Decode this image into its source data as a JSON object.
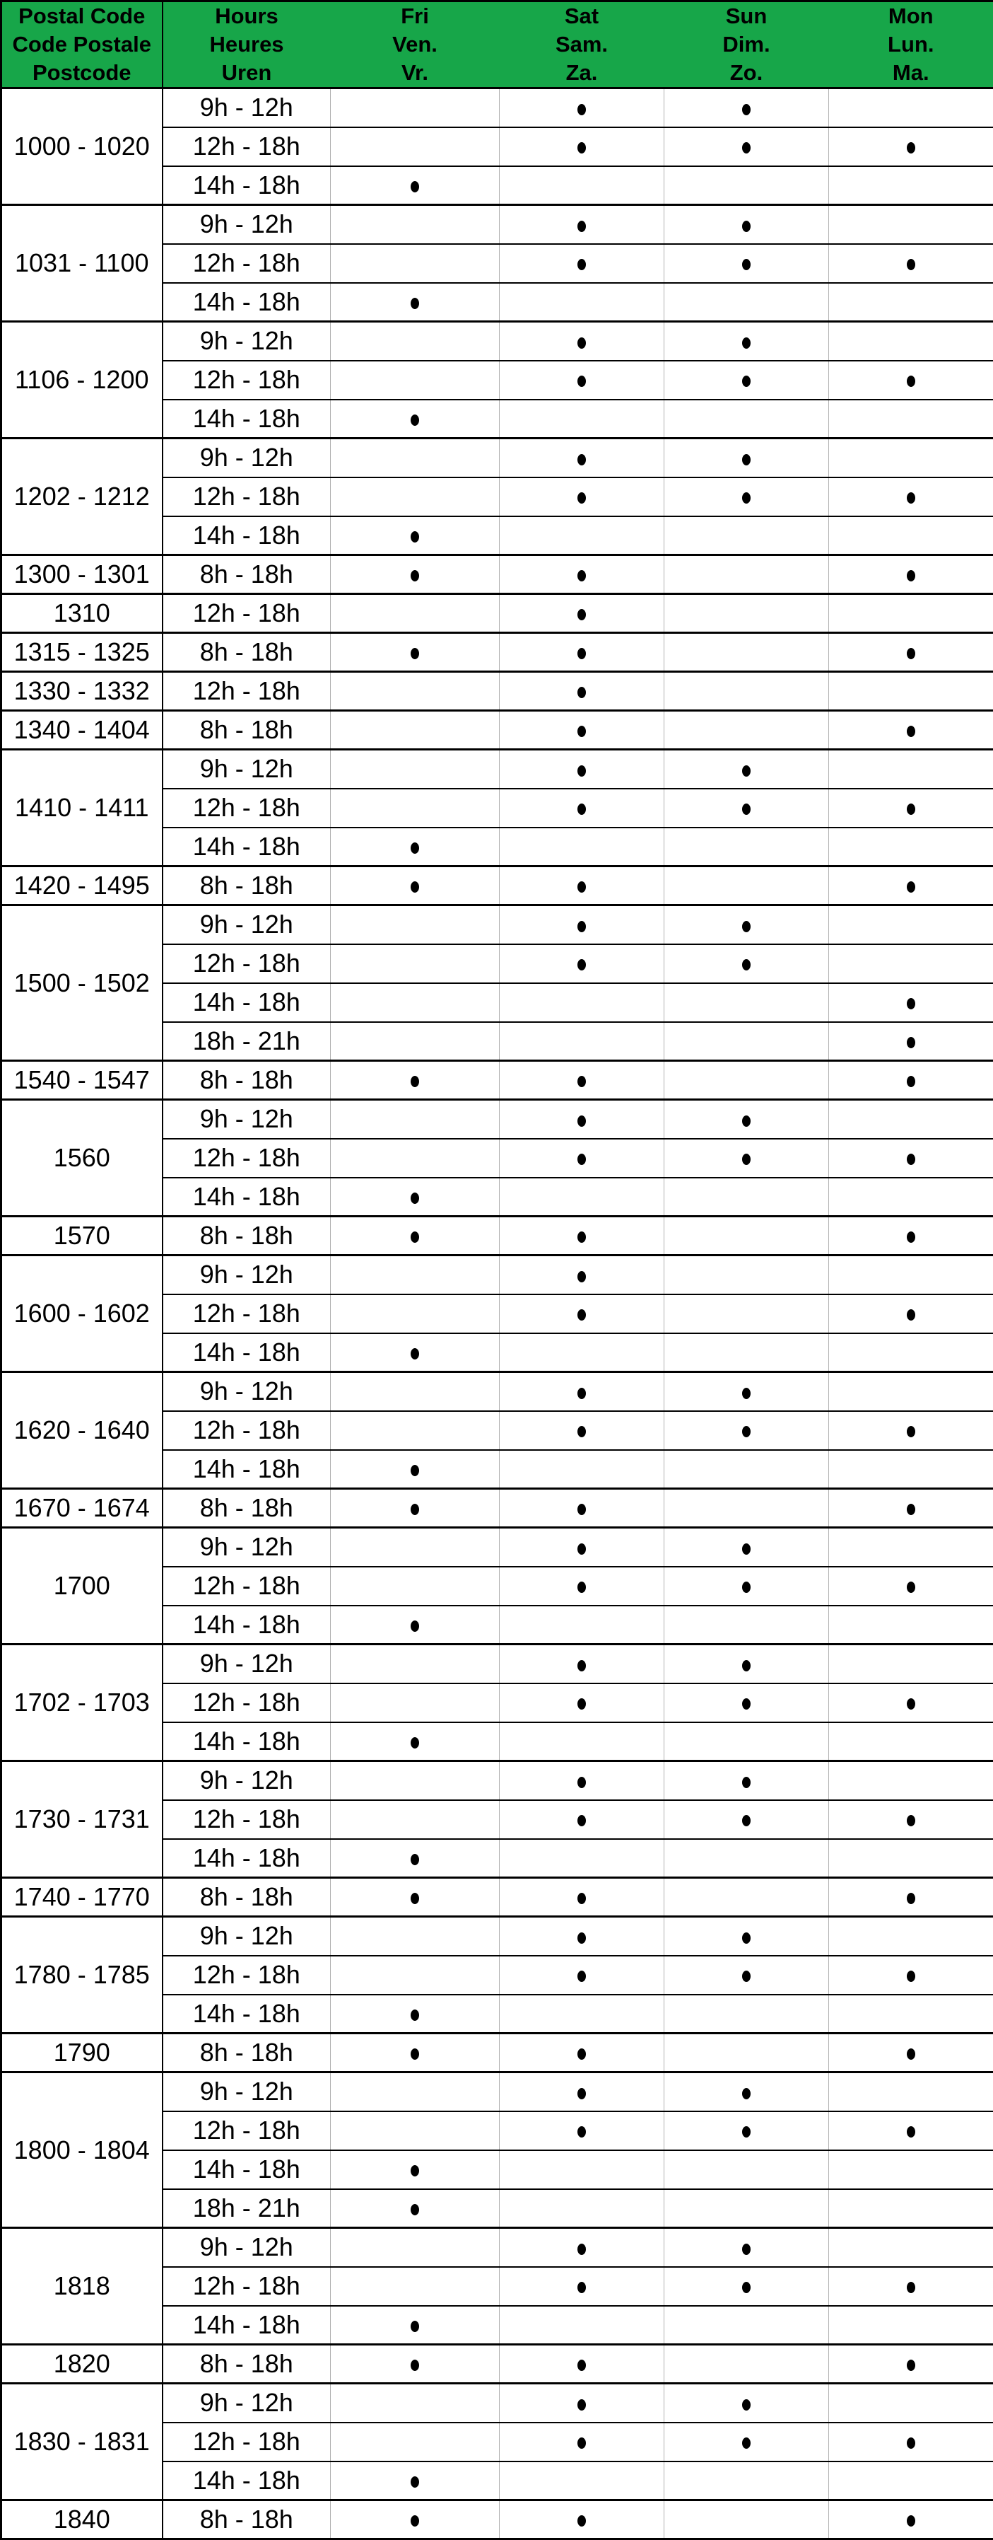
{
  "colors": {
    "header_bg": "#17a649",
    "grid_gray": "#b0b0b0",
    "border_black": "#000000",
    "dot_color": "#000000"
  },
  "table": {
    "header": {
      "postal": [
        "Postal Code",
        "Code Postale",
        "Postcode"
      ],
      "hours": [
        "Hours",
        "Heures",
        "Uren"
      ],
      "fri": [
        "Fri",
        "Ven.",
        "Vr."
      ],
      "sat": [
        "Sat",
        "Sam.",
        "Za."
      ],
      "sun": [
        "Sun",
        "Dim.",
        "Zo."
      ],
      "mon": [
        "Mon",
        "Lun.",
        "Ma."
      ]
    },
    "groups": [
      {
        "postal": "1000 - 1020",
        "rows": [
          {
            "hours": "9h - 12h",
            "fri": false,
            "sat": true,
            "sun": true,
            "mon": false
          },
          {
            "hours": "12h - 18h",
            "fri": false,
            "sat": true,
            "sun": true,
            "mon": true
          },
          {
            "hours": "14h - 18h",
            "fri": true,
            "sat": false,
            "sun": false,
            "mon": false
          }
        ]
      },
      {
        "postal": "1031 - 1100",
        "rows": [
          {
            "hours": "9h - 12h",
            "fri": false,
            "sat": true,
            "sun": true,
            "mon": false
          },
          {
            "hours": "12h - 18h",
            "fri": false,
            "sat": true,
            "sun": true,
            "mon": true
          },
          {
            "hours": "14h - 18h",
            "fri": true,
            "sat": false,
            "sun": false,
            "mon": false
          }
        ]
      },
      {
        "postal": "1106 - 1200",
        "rows": [
          {
            "hours": "9h - 12h",
            "fri": false,
            "sat": true,
            "sun": true,
            "mon": false
          },
          {
            "hours": "12h - 18h",
            "fri": false,
            "sat": true,
            "sun": true,
            "mon": true
          },
          {
            "hours": "14h - 18h",
            "fri": true,
            "sat": false,
            "sun": false,
            "mon": false
          }
        ]
      },
      {
        "postal": "1202 - 1212",
        "rows": [
          {
            "hours": "9h - 12h",
            "fri": false,
            "sat": true,
            "sun": true,
            "mon": false
          },
          {
            "hours": "12h - 18h",
            "fri": false,
            "sat": true,
            "sun": true,
            "mon": true
          },
          {
            "hours": "14h - 18h",
            "fri": true,
            "sat": false,
            "sun": false,
            "mon": false
          }
        ]
      },
      {
        "postal": "1300 - 1301",
        "rows": [
          {
            "hours": "8h - 18h",
            "fri": true,
            "sat": true,
            "sun": false,
            "mon": true
          }
        ]
      },
      {
        "postal": "1310",
        "rows": [
          {
            "hours": "12h - 18h",
            "fri": false,
            "sat": true,
            "sun": false,
            "mon": false
          }
        ]
      },
      {
        "postal": "1315 - 1325",
        "rows": [
          {
            "hours": "8h - 18h",
            "fri": true,
            "sat": true,
            "sun": false,
            "mon": true
          }
        ]
      },
      {
        "postal": "1330 - 1332",
        "rows": [
          {
            "hours": "12h - 18h",
            "fri": false,
            "sat": true,
            "sun": false,
            "mon": false
          }
        ]
      },
      {
        "postal": "1340 - 1404",
        "rows": [
          {
            "hours": "8h - 18h",
            "fri": false,
            "sat": true,
            "sun": false,
            "mon": true
          }
        ]
      },
      {
        "postal": "1410 - 1411",
        "rows": [
          {
            "hours": "9h - 12h",
            "fri": false,
            "sat": true,
            "sun": true,
            "mon": false
          },
          {
            "hours": "12h - 18h",
            "fri": false,
            "sat": true,
            "sun": true,
            "mon": true
          },
          {
            "hours": "14h - 18h",
            "fri": true,
            "sat": false,
            "sun": false,
            "mon": false
          }
        ]
      },
      {
        "postal": "1420 - 1495",
        "rows": [
          {
            "hours": "8h - 18h",
            "fri": true,
            "sat": true,
            "sun": false,
            "mon": true
          }
        ]
      },
      {
        "postal": "1500 - 1502",
        "rows": [
          {
            "hours": "9h - 12h",
            "fri": false,
            "sat": true,
            "sun": true,
            "mon": false
          },
          {
            "hours": "12h - 18h",
            "fri": false,
            "sat": true,
            "sun": true,
            "mon": false
          },
          {
            "hours": "14h - 18h",
            "fri": false,
            "sat": false,
            "sun": false,
            "mon": true
          },
          {
            "hours": "18h - 21h",
            "fri": false,
            "sat": false,
            "sun": false,
            "mon": true
          }
        ]
      },
      {
        "postal": "1540 - 1547",
        "rows": [
          {
            "hours": "8h - 18h",
            "fri": true,
            "sat": true,
            "sun": false,
            "mon": true
          }
        ]
      },
      {
        "postal": "1560",
        "rows": [
          {
            "hours": "9h - 12h",
            "fri": false,
            "sat": true,
            "sun": true,
            "mon": false
          },
          {
            "hours": "12h - 18h",
            "fri": false,
            "sat": true,
            "sun": true,
            "mon": true
          },
          {
            "hours": "14h - 18h",
            "fri": true,
            "sat": false,
            "sun": false,
            "mon": false
          }
        ]
      },
      {
        "postal": "1570",
        "rows": [
          {
            "hours": "8h - 18h",
            "fri": true,
            "sat": true,
            "sun": false,
            "mon": true
          }
        ]
      },
      {
        "postal": "1600 - 1602",
        "rows": [
          {
            "hours": "9h - 12h",
            "fri": false,
            "sat": true,
            "sun": false,
            "mon": false
          },
          {
            "hours": "12h - 18h",
            "fri": false,
            "sat": true,
            "sun": false,
            "mon": true
          },
          {
            "hours": "14h - 18h",
            "fri": true,
            "sat": false,
            "sun": false,
            "mon": false
          }
        ]
      },
      {
        "postal": "1620 - 1640",
        "rows": [
          {
            "hours": "9h - 12h",
            "fri": false,
            "sat": true,
            "sun": true,
            "mon": false
          },
          {
            "hours": "12h - 18h",
            "fri": false,
            "sat": true,
            "sun": true,
            "mon": true
          },
          {
            "hours": "14h - 18h",
            "fri": true,
            "sat": false,
            "sun": false,
            "mon": false
          }
        ]
      },
      {
        "postal": "1670 - 1674",
        "rows": [
          {
            "hours": "8h - 18h",
            "fri": true,
            "sat": true,
            "sun": false,
            "mon": true
          }
        ]
      },
      {
        "postal": "1700",
        "rows": [
          {
            "hours": "9h - 12h",
            "fri": false,
            "sat": true,
            "sun": true,
            "mon": false
          },
          {
            "hours": "12h - 18h",
            "fri": false,
            "sat": true,
            "sun": true,
            "mon": true
          },
          {
            "hours": "14h - 18h",
            "fri": true,
            "sat": false,
            "sun": false,
            "mon": false
          }
        ]
      },
      {
        "postal": "1702 - 1703",
        "rows": [
          {
            "hours": "9h - 12h",
            "fri": false,
            "sat": true,
            "sun": true,
            "mon": false
          },
          {
            "hours": "12h - 18h",
            "fri": false,
            "sat": true,
            "sun": true,
            "mon": true
          },
          {
            "hours": "14h - 18h",
            "fri": true,
            "sat": false,
            "sun": false,
            "mon": false
          }
        ]
      },
      {
        "postal": "1730 - 1731",
        "rows": [
          {
            "hours": "9h - 12h",
            "fri": false,
            "sat": true,
            "sun": true,
            "mon": false
          },
          {
            "hours": "12h - 18h",
            "fri": false,
            "sat": true,
            "sun": true,
            "mon": true
          },
          {
            "hours": "14h - 18h",
            "fri": true,
            "sat": false,
            "sun": false,
            "mon": false
          }
        ]
      },
      {
        "postal": "1740 - 1770",
        "rows": [
          {
            "hours": "8h - 18h",
            "fri": true,
            "sat": true,
            "sun": false,
            "mon": true
          }
        ]
      },
      {
        "postal": "1780 - 1785",
        "rows": [
          {
            "hours": "9h - 12h",
            "fri": false,
            "sat": true,
            "sun": true,
            "mon": false
          },
          {
            "hours": "12h - 18h",
            "fri": false,
            "sat": true,
            "sun": true,
            "mon": true
          },
          {
            "hours": "14h - 18h",
            "fri": true,
            "sat": false,
            "sun": false,
            "mon": false
          }
        ]
      },
      {
        "postal": "1790",
        "rows": [
          {
            "hours": "8h - 18h",
            "fri": true,
            "sat": true,
            "sun": false,
            "mon": true
          }
        ]
      },
      {
        "postal": "1800 - 1804",
        "rows": [
          {
            "hours": "9h - 12h",
            "fri": false,
            "sat": true,
            "sun": true,
            "mon": false
          },
          {
            "hours": "12h - 18h",
            "fri": false,
            "sat": true,
            "sun": true,
            "mon": true
          },
          {
            "hours": "14h - 18h",
            "fri": true,
            "sat": false,
            "sun": false,
            "mon": false
          },
          {
            "hours": "18h - 21h",
            "fri": true,
            "sat": false,
            "sun": false,
            "mon": false
          }
        ]
      },
      {
        "postal": "1818",
        "rows": [
          {
            "hours": "9h - 12h",
            "fri": false,
            "sat": true,
            "sun": true,
            "mon": false
          },
          {
            "hours": "12h - 18h",
            "fri": false,
            "sat": true,
            "sun": true,
            "mon": true
          },
          {
            "hours": "14h - 18h",
            "fri": true,
            "sat": false,
            "sun": false,
            "mon": false
          }
        ]
      },
      {
        "postal": "1820",
        "rows": [
          {
            "hours": "8h - 18h",
            "fri": true,
            "sat": true,
            "sun": false,
            "mon": true
          }
        ]
      },
      {
        "postal": "1830 - 1831",
        "rows": [
          {
            "hours": "9h - 12h",
            "fri": false,
            "sat": true,
            "sun": true,
            "mon": false
          },
          {
            "hours": "12h - 18h",
            "fri": false,
            "sat": true,
            "sun": true,
            "mon": true
          },
          {
            "hours": "14h - 18h",
            "fri": true,
            "sat": false,
            "sun": false,
            "mon": false
          }
        ]
      },
      {
        "postal": "1840",
        "rows": [
          {
            "hours": "8h - 18h",
            "fri": true,
            "sat": true,
            "sun": false,
            "mon": true
          }
        ]
      }
    ]
  }
}
